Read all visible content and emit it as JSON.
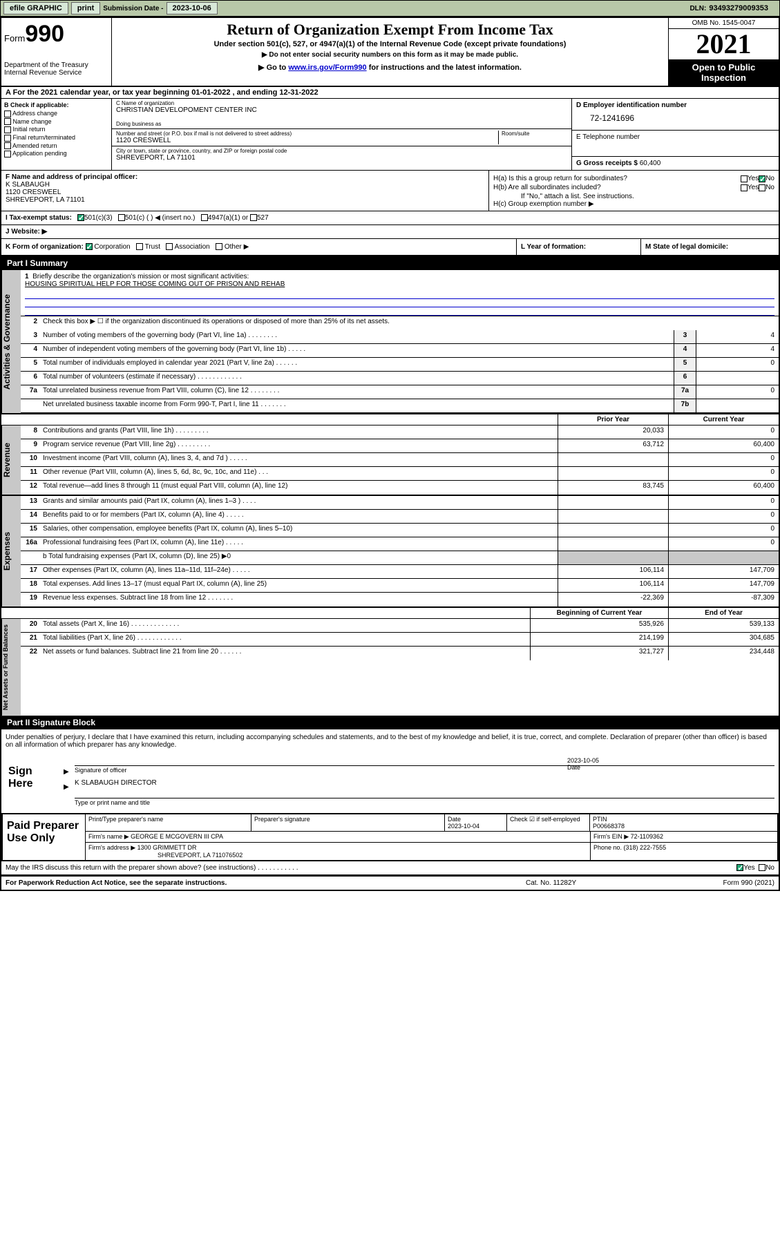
{
  "topbar": {
    "efile": "efile GRAPHIC",
    "print": "print",
    "sub_label": "Submission Date - ",
    "sub_date": "2023-10-06",
    "dln_label": "DLN: ",
    "dln": "93493279009353"
  },
  "header": {
    "form_prefix": "Form",
    "form_num": "990",
    "dept": "Department of the Treasury\nInternal Revenue Service",
    "title": "Return of Organization Exempt From Income Tax",
    "sub1": "Under section 501(c), 527, or 4947(a)(1) of the Internal Revenue Code (except private foundations)",
    "sub2": "▶ Do not enter social security numbers on this form as it may be made public.",
    "link_pre": "▶ Go to ",
    "link_url": "www.irs.gov/Form990",
    "link_post": " for instructions and the latest information.",
    "omb": "OMB No. 1545-0047",
    "year": "2021",
    "open": "Open to Public Inspection"
  },
  "row_a": "A For the 2021 calendar year, or tax year beginning 01-01-2022   , and ending 12-31-2022",
  "col_b": {
    "label": "B Check if applicable:",
    "items": [
      "Address change",
      "Name change",
      "Initial return",
      "Final return/terminated",
      "Amended return",
      "Application pending"
    ]
  },
  "col_c": {
    "name_label": "C Name of organization",
    "name": "CHRISTIAN DEVELOPOMENT CENTER INC",
    "dba_label": "Doing business as",
    "addr_label": "Number and street (or P.O. box if mail is not delivered to street address)",
    "room_label": "Room/suite",
    "addr": "1120 CRESWELL",
    "city_label": "City or town, state or province, country, and ZIP or foreign postal code",
    "city": "SHREVEPORT, LA  71101"
  },
  "col_d": {
    "ein_label": "D Employer identification number",
    "ein": "72-1241696",
    "phone_label": "E Telephone number",
    "gross_label": "G Gross receipts $ ",
    "gross": "60,400"
  },
  "officer": {
    "label": "F  Name and address of principal officer:",
    "name": "K SLABAUGH",
    "addr": "1120 CRESWEEL",
    "city": "SHREVEPORT, LA  71101"
  },
  "h": {
    "a_label": "H(a)  Is this a group return for subordinates?",
    "b_label": "H(b)  Are all subordinates included?",
    "b_note": "If \"No,\" attach a list. See instructions.",
    "c_label": "H(c)  Group exemption number ▶",
    "yes": "Yes",
    "no": "No"
  },
  "tax_status": {
    "label": "I  Tax-exempt status:",
    "opt1": "501(c)(3)",
    "opt2": "501(c) (  ) ◀ (insert no.)",
    "opt3": "4947(a)(1) or",
    "opt4": "527"
  },
  "website": {
    "label": "J  Website: ▶"
  },
  "k": {
    "label": "K Form of organization:",
    "corp": "Corporation",
    "trust": "Trust",
    "assoc": "Association",
    "other": "Other ▶"
  },
  "l": {
    "label": "L Year of formation:"
  },
  "m": {
    "label": "M State of legal domicile:"
  },
  "part1": {
    "header": "Part I     Summary",
    "q1": "Briefly describe the organization's mission or most significant activities:",
    "mission": "HOUSING SPIRITUAL HELP FOR THOSE COMING OUT OF PRISON AND REHAB",
    "q2": "Check this box ▶ ☐  if the organization discontinued its operations or disposed of more than 25% of its net assets.",
    "lines": [
      {
        "n": "3",
        "d": "Number of voting members of the governing body (Part VI, line 1a)  .   .   .   .   .   .   .   .",
        "box": "3",
        "v": "4"
      },
      {
        "n": "4",
        "d": "Number of independent voting members of the governing body (Part VI, line 1b)  .   .   .   .   .",
        "box": "4",
        "v": "4"
      },
      {
        "n": "5",
        "d": "Total number of individuals employed in calendar year 2021 (Part V, line 2a)  .   .   .   .   .   .",
        "box": "5",
        "v": "0"
      },
      {
        "n": "6",
        "d": "Total number of volunteers (estimate if necessary)  .   .   .   .   .   .   .   .   .   .   .   .",
        "box": "6",
        "v": ""
      },
      {
        "n": "7a",
        "d": "Total unrelated business revenue from Part VIII, column (C), line 12  .   .   .   .   .   .   .   .",
        "box": "7a",
        "v": "0"
      },
      {
        "n": "",
        "d": "Net unrelated business taxable income from Form 990-T, Part I, line 11  .   .   .   .   .   .   .",
        "box": "7b",
        "v": ""
      }
    ],
    "col_prior": "Prior Year",
    "col_current": "Current Year",
    "revenue": [
      {
        "n": "8",
        "d": "Contributions and grants (Part VIII, line 1h)  .   .   .   .   .   .   .   .   .",
        "p": "20,033",
        "c": "0"
      },
      {
        "n": "9",
        "d": "Program service revenue (Part VIII, line 2g)  .   .   .   .   .   .   .   .   .",
        "p": "63,712",
        "c": "60,400"
      },
      {
        "n": "10",
        "d": "Investment income (Part VIII, column (A), lines 3, 4, and 7d )  .   .   .   .   .",
        "p": "",
        "c": "0"
      },
      {
        "n": "11",
        "d": "Other revenue (Part VIII, column (A), lines 5, 6d, 8c, 9c, 10c, and 11e)  .   .   .",
        "p": "",
        "c": "0"
      },
      {
        "n": "12",
        "d": "Total revenue—add lines 8 through 11 (must equal Part VIII, column (A), line 12)",
        "p": "83,745",
        "c": "60,400"
      }
    ],
    "expenses": [
      {
        "n": "13",
        "d": "Grants and similar amounts paid (Part IX, column (A), lines 1–3 )  .   .   .   .",
        "p": "",
        "c": "0"
      },
      {
        "n": "14",
        "d": "Benefits paid to or for members (Part IX, column (A), line 4)  .   .   .   .   .",
        "p": "",
        "c": "0"
      },
      {
        "n": "15",
        "d": "Salaries, other compensation, employee benefits (Part IX, column (A), lines 5–10)",
        "p": "",
        "c": "0"
      },
      {
        "n": "16a",
        "d": "Professional fundraising fees (Part IX, column (A), line 11e)  .   .   .   .   .",
        "p": "",
        "c": "0"
      }
    ],
    "line_b": "b  Total fundraising expenses (Part IX, column (D), line 25) ▶0",
    "expenses2": [
      {
        "n": "17",
        "d": "Other expenses (Part IX, column (A), lines 11a–11d, 11f–24e)  .   .   .   .   .",
        "p": "106,114",
        "c": "147,709"
      },
      {
        "n": "18",
        "d": "Total expenses. Add lines 13–17 (must equal Part IX, column (A), line 25)",
        "p": "106,114",
        "c": "147,709"
      },
      {
        "n": "19",
        "d": "Revenue less expenses. Subtract line 18 from line 12  .   .   .   .   .   .   .",
        "p": "-22,369",
        "c": "-87,309"
      }
    ],
    "col_begin": "Beginning of Current Year",
    "col_end": "End of Year",
    "netassets": [
      {
        "n": "20",
        "d": "Total assets (Part X, line 16)  .   .   .   .   .   .   .   .   .   .   .   .   .",
        "p": "535,926",
        "c": "539,133"
      },
      {
        "n": "21",
        "d": "Total liabilities (Part X, line 26)  .   .   .   .   .   .   .   .   .   .   .   .",
        "p": "214,199",
        "c": "304,685"
      },
      {
        "n": "22",
        "d": "Net assets or fund balances. Subtract line 21 from line 20  .   .   .   .   .   .",
        "p": "321,727",
        "c": "234,448"
      }
    ]
  },
  "side_labels": {
    "gov": "Activities & Governance",
    "rev": "Revenue",
    "exp": "Expenses",
    "net": "Net Assets or Fund Balances"
  },
  "part2": {
    "header": "Part II    Signature Block",
    "decl": "Under penalties of perjury, I declare that I have examined this return, including accompanying schedules and statements, and to the best of my knowledge and belief, it is true, correct, and complete. Declaration of preparer (other than officer) is based on all information of which preparer has any knowledge.",
    "sign_here": "Sign Here",
    "sig_officer": "Signature of officer",
    "sig_date": "2023-10-05",
    "date_label": "Date",
    "officer_name": "K SLABAUGH  DIRECTOR",
    "name_title": "Type or print name and title"
  },
  "paid": {
    "label": "Paid Preparer Use Only",
    "h1": "Print/Type preparer's name",
    "h2": "Preparer's signature",
    "h3": "Date",
    "h3v": "2023-10-04",
    "h4": "Check ☑ if self-employed",
    "h5": "PTIN",
    "h5v": "P00668378",
    "firm_name_label": "Firm's name    ▶ ",
    "firm_name": "GEORGE E MCGOVERN III CPA",
    "firm_ein_label": "Firm's EIN ▶ ",
    "firm_ein": "72-1109362",
    "firm_addr_label": "Firm's address ▶ ",
    "firm_addr": "1300 GRIMMETT DR",
    "firm_city": "SHREVEPORT, LA  711076502",
    "phone_label": "Phone no. ",
    "phone": "(318) 222-7555"
  },
  "may_discuss": "May the IRS discuss this return with the preparer shown above? (see instructions)  .   .   .   .   .   .   .   .   .   .   .",
  "footer": {
    "l": "For Paperwork Reduction Act Notice, see the separate instructions.",
    "c": "Cat. No. 11282Y",
    "r": "Form 990 (2021)"
  },
  "colors": {
    "topbar_bg": "#b8c8a8",
    "shaded": "#c8c8c8",
    "link": "#0000cc",
    "check": "#22aa77"
  }
}
